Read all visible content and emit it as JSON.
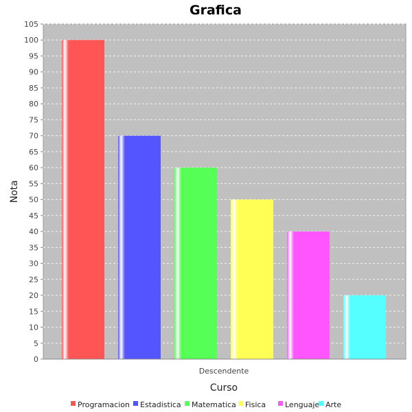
{
  "chart_data": {
    "type": "bar",
    "title": "Grafica",
    "xlabel": "Curso",
    "ylabel": "Nota",
    "categories": [
      "Descendente"
    ],
    "series": [
      {
        "name": "Programacion",
        "values": [
          100
        ],
        "color": "#ff5555"
      },
      {
        "name": "Estadistica",
        "values": [
          70
        ],
        "color": "#5555ff"
      },
      {
        "name": "Matematica",
        "values": [
          60
        ],
        "color": "#55ff55"
      },
      {
        "name": "Fisica",
        "values": [
          50
        ],
        "color": "#ffff55"
      },
      {
        "name": "Lenguaje",
        "values": [
          40
        ],
        "color": "#ff55ff"
      },
      {
        "name": "Arte",
        "values": [
          20
        ],
        "color": "#55ffff"
      }
    ],
    "ylim": [
      0,
      105
    ],
    "yticks": [
      "0",
      "5",
      "10",
      "15",
      "20",
      "25",
      "30",
      "35",
      "40",
      "45",
      "50",
      "55",
      "60",
      "65",
      "70",
      "75",
      "80",
      "85",
      "90",
      "95",
      "100",
      "105"
    ],
    "grid": true,
    "legend_position": "bottom",
    "plot_background": "#c0c0c0"
  }
}
